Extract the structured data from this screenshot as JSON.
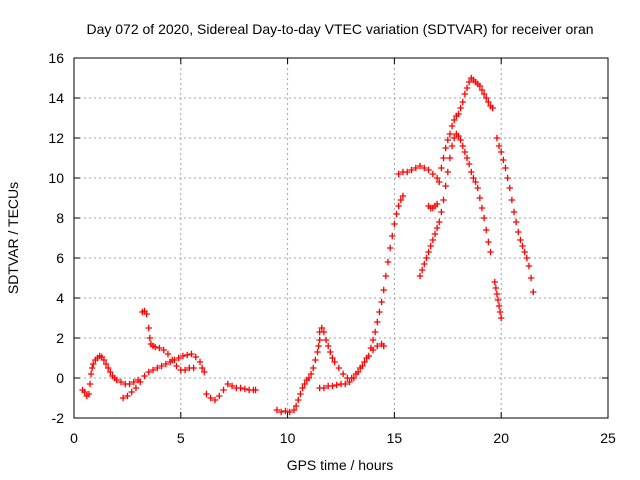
{
  "chart_data": {
    "type": "scatter",
    "title": "Day 072 of 2020, Sidereal Day-to-day VTEC variation (SDTVAR) for receiver oran",
    "xlabel": "GPS time / hours",
    "ylabel": "SDTVAR / TECUs",
    "xlim": [
      0,
      25
    ],
    "ylim": [
      -2,
      16
    ],
    "xticks": [
      0,
      5,
      10,
      15,
      20,
      25
    ],
    "yticks": [
      -2,
      0,
      2,
      4,
      6,
      8,
      10,
      12,
      14,
      16
    ],
    "grid": true,
    "marker": "plus",
    "color": "#ff0000",
    "series": [
      {
        "x": [
          0.4,
          0.5,
          0.6,
          0.7,
          0.75,
          0.8,
          0.85,
          0.9,
          1.0,
          1.1,
          1.2,
          1.3,
          1.4,
          1.5,
          1.6,
          1.7,
          1.8,
          1.9,
          2.0,
          2.2,
          2.4,
          2.6,
          2.8,
          3.0
        ],
        "y": [
          -0.6,
          -0.7,
          -0.9,
          -0.8,
          -0.3,
          0.2,
          0.5,
          0.7,
          0.9,
          1.0,
          1.1,
          1.05,
          0.9,
          0.7,
          0.5,
          0.3,
          0.1,
          0.0,
          -0.1,
          -0.2,
          -0.3,
          -0.3,
          -0.2,
          -0.1
        ]
      },
      {
        "x": [
          2.3,
          2.5,
          2.7,
          2.9,
          3.1,
          3.3,
          3.5,
          3.7,
          3.9,
          4.1,
          4.3,
          4.5,
          4.7,
          4.9,
          5.1,
          5.3,
          5.5,
          5.7,
          5.9,
          6.0,
          6.1
        ],
        "y": [
          -1.0,
          -0.9,
          -0.7,
          -0.5,
          -0.2,
          0.1,
          0.3,
          0.4,
          0.5,
          0.6,
          0.7,
          0.8,
          0.9,
          1.0,
          1.1,
          1.15,
          1.2,
          1.05,
          0.8,
          0.5,
          0.3
        ]
      },
      {
        "x": [
          3.2,
          3.3,
          3.4,
          3.5,
          3.55,
          3.6,
          3.7,
          3.8,
          4.0,
          4.2,
          4.4,
          4.6,
          4.8,
          5.0,
          5.2,
          5.4,
          5.6
        ],
        "y": [
          3.3,
          3.35,
          3.2,
          2.5,
          2.0,
          1.7,
          1.6,
          1.55,
          1.5,
          1.4,
          1.2,
          0.9,
          0.6,
          0.4,
          0.4,
          0.5,
          0.5
        ]
      },
      {
        "x": [
          6.2,
          6.4,
          6.6,
          6.8,
          7.0,
          7.2,
          7.4,
          7.6,
          7.8,
          8.0,
          8.2,
          8.4,
          8.5
        ],
        "y": [
          -0.8,
          -1.0,
          -1.1,
          -0.9,
          -0.6,
          -0.3,
          -0.4,
          -0.5,
          -0.5,
          -0.55,
          -0.6,
          -0.6,
          -0.6
        ]
      },
      {
        "x": [
          9.5,
          9.7,
          9.9,
          10.1,
          10.3,
          10.4,
          10.5,
          10.6,
          10.7,
          10.8,
          10.9,
          11.0,
          11.1,
          11.2,
          11.3,
          11.4,
          11.45,
          11.5
        ],
        "y": [
          -1.6,
          -1.7,
          -1.65,
          -1.7,
          -1.6,
          -1.4,
          -1.1,
          -0.8,
          -0.5,
          -0.3,
          -0.1,
          0.0,
          0.2,
          0.5,
          0.9,
          1.3,
          1.6,
          1.9
        ]
      },
      {
        "x": [
          11.5,
          11.6,
          11.7,
          11.8,
          11.9,
          12.0,
          12.1,
          12.2,
          12.4,
          12.6,
          12.8,
          13.0,
          13.2,
          13.4,
          13.6,
          13.8,
          14.0,
          14.2,
          14.4,
          14.5
        ],
        "y": [
          2.3,
          2.5,
          2.3,
          1.9,
          1.6,
          1.3,
          1.0,
          0.8,
          0.5,
          0.2,
          0.0,
          0.0,
          0.2,
          0.5,
          0.8,
          1.1,
          1.4,
          1.6,
          1.7,
          1.6
        ]
      },
      {
        "x": [
          11.5,
          11.7,
          11.9,
          12.1,
          12.3,
          12.5,
          12.7,
          12.9,
          13.1,
          13.3,
          13.5,
          13.7,
          13.9,
          14.0,
          14.1,
          14.2,
          14.3,
          14.4,
          14.5,
          14.6,
          14.7,
          14.8,
          14.9,
          15.0,
          15.1,
          15.2,
          15.3,
          15.4
        ],
        "y": [
          -0.5,
          -0.5,
          -0.4,
          -0.4,
          -0.35,
          -0.3,
          -0.3,
          -0.2,
          0.0,
          0.3,
          0.6,
          1.0,
          1.5,
          1.9,
          2.3,
          2.8,
          3.3,
          3.8,
          4.4,
          5.1,
          5.8,
          6.5,
          7.1,
          7.7,
          8.2,
          8.6,
          8.9,
          9.1
        ]
      },
      {
        "x": [
          15.2,
          15.4,
          15.6,
          15.8,
          16.0,
          16.2,
          16.4,
          16.6,
          16.8,
          17.0,
          17.1,
          17.2,
          17.3,
          17.4,
          17.5,
          17.6,
          17.7,
          17.8,
          17.9,
          18.0,
          18.1,
          18.2,
          18.3,
          18.4,
          18.5,
          18.6,
          18.7,
          18.8,
          18.9,
          19.0,
          19.1,
          19.2,
          19.3,
          19.4,
          19.5,
          19.6
        ],
        "y": [
          10.2,
          10.3,
          10.3,
          10.4,
          10.5,
          10.6,
          10.5,
          10.4,
          10.2,
          10.0,
          9.8,
          10.5,
          11.0,
          11.5,
          11.9,
          12.2,
          12.6,
          12.9,
          13.1,
          13.2,
          13.5,
          13.8,
          14.2,
          14.5,
          14.8,
          15.0,
          14.9,
          14.8,
          14.7,
          14.6,
          14.4,
          14.2,
          14.0,
          13.8,
          13.6,
          13.5
        ]
      },
      {
        "x": [
          16.2,
          16.3,
          16.4,
          16.5,
          16.6,
          16.7,
          16.8,
          16.9,
          17.0,
          17.1,
          17.2,
          17.3,
          17.4,
          17.5,
          17.6,
          17.7,
          17.8,
          17.9,
          18.0,
          18.1,
          18.2,
          18.3,
          18.4,
          18.5,
          18.6,
          18.7,
          18.8,
          18.9,
          19.0,
          19.1,
          19.2,
          19.3,
          19.4,
          19.5
        ],
        "y": [
          5.1,
          5.4,
          5.7,
          6.0,
          6.3,
          6.6,
          6.9,
          7.2,
          7.5,
          7.8,
          8.3,
          8.9,
          9.6,
          10.3,
          11.0,
          11.6,
          12.0,
          12.2,
          12.1,
          11.9,
          11.6,
          11.3,
          11.0,
          10.7,
          10.3,
          10.0,
          9.8,
          9.5,
          9.0,
          8.5,
          8.0,
          7.4,
          6.8,
          6.3
        ]
      },
      {
        "x": [
          16.6,
          16.7,
          16.8,
          16.9,
          17.0
        ],
        "y": [
          8.6,
          8.5,
          8.5,
          8.6,
          8.7
        ]
      },
      {
        "x": [
          19.7,
          19.75,
          19.8,
          19.85,
          19.9,
          19.95,
          20.0
        ],
        "y": [
          4.8,
          4.5,
          4.2,
          3.9,
          3.6,
          3.3,
          3.0
        ]
      },
      {
        "x": [
          19.8,
          19.9,
          20.0,
          20.1,
          20.2,
          20.3,
          20.4,
          20.5,
          20.6,
          20.7,
          20.8,
          20.9,
          21.0,
          21.1,
          21.2,
          21.3,
          21.4,
          21.5
        ],
        "y": [
          12.0,
          11.6,
          11.3,
          10.9,
          10.5,
          10.0,
          9.5,
          8.9,
          8.3,
          7.8,
          7.3,
          6.9,
          6.6,
          6.3,
          6.0,
          5.6,
          5.0,
          4.3
        ]
      }
    ]
  }
}
